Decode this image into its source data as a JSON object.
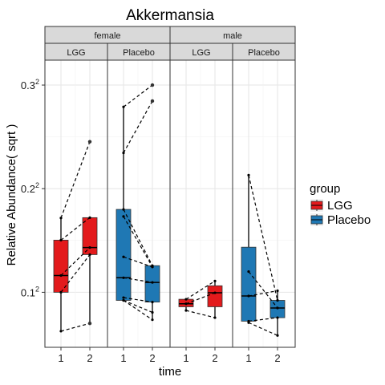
{
  "chart_data": {
    "type": "boxplot",
    "title": "Akkermansia",
    "xlabel": "time",
    "ylabel": "Relative Abundance( sqrt )",
    "y_scale": "sqrt",
    "ylim": [
      0.0022,
      0.105
    ],
    "y_ticks": [
      {
        "value": 0.01,
        "base": "0.1",
        "exp": "2"
      },
      {
        "value": 0.04,
        "base": "0.2",
        "exp": "2"
      },
      {
        "value": 0.09,
        "base": "0.3",
        "exp": "2"
      }
    ],
    "x_ticks": [
      "1",
      "2"
    ],
    "grid": true,
    "legend": {
      "title": "group",
      "position": "right",
      "items": [
        {
          "label": "LGG",
          "color": "#e31a1c"
        },
        {
          "label": "Placebo",
          "color": "#1f78b4"
        }
      ]
    },
    "facet_rows": [
      "female",
      "male"
    ],
    "facet_cols": [
      "LGG",
      "Placebo"
    ],
    "panels": [
      {
        "sex": "female",
        "group": "LGG",
        "color": "#e31a1c",
        "boxes": [
          {
            "time": "1",
            "min": 0.0039,
            "q1": 0.01,
            "median": 0.0135,
            "q3": 0.0226,
            "max": 0.0295
          },
          {
            "time": "2",
            "min": 0.0049,
            "q1": 0.0186,
            "median": 0.0205,
            "q3": 0.0296,
            "max": 0.0296
          }
        ],
        "outliers": [
          {
            "time": "2",
            "value": 0.0602
          },
          {
            "time": "2",
            "value": 0.0049
          }
        ],
        "pairs": [
          [
            0.0295,
            0.0602
          ],
          [
            0.0226,
            0.0296
          ],
          [
            0.0135,
            0.0205
          ],
          [
            0.01,
            0.0186
          ],
          [
            0.0039,
            0.0049
          ]
        ]
      },
      {
        "sex": "female",
        "group": "Placebo",
        "color": "#1f78b4",
        "boxes": [
          {
            "time": "1",
            "min": 0.0085,
            "q1": 0.0085,
            "median": 0.013,
            "q3": 0.0324,
            "max": 0.0778
          },
          {
            "time": "2",
            "min": 0.0054,
            "q1": 0.0082,
            "median": 0.012,
            "q3": 0.0158,
            "max": 0.0158
          }
        ],
        "outliers": [
          {
            "time": "2",
            "value": 0.09
          },
          {
            "time": "2",
            "value": 0.081
          }
        ],
        "pairs": [
          [
            0.0778,
            0.09
          ],
          [
            0.055,
            0.081
          ],
          [
            0.0324,
            0.0158
          ],
          [
            0.03,
            0.0155
          ],
          [
            0.018,
            0.0155
          ],
          [
            0.013,
            0.012
          ],
          [
            0.009,
            0.0082
          ],
          [
            0.0085,
            0.0065
          ],
          [
            0.0085,
            0.0054
          ]
        ]
      },
      {
        "sex": "male",
        "group": "LGG",
        "color": "#e31a1c",
        "boxes": [
          {
            "time": "1",
            "min": 0.0068,
            "q1": 0.0074,
            "median": 0.0079,
            "q3": 0.0087,
            "max": 0.0087
          },
          {
            "time": "2",
            "min": 0.0057,
            "q1": 0.0074,
            "median": 0.0099,
            "q3": 0.0113,
            "max": 0.0123
          }
        ],
        "outliers": [],
        "pairs": [
          [
            0.0087,
            0.0123
          ],
          [
            0.0079,
            0.0099
          ],
          [
            0.0068,
            0.0057
          ]
        ]
      },
      {
        "sex": "male",
        "group": "Placebo",
        "color": "#1f78b4",
        "boxes": [
          {
            "time": "1",
            "min": 0.005,
            "q1": 0.0052,
            "median": 0.0093,
            "q3": 0.0206,
            "max": 0.0454
          },
          {
            "time": "2",
            "min": 0.0034,
            "q1": 0.0057,
            "median": 0.0072,
            "q3": 0.0085,
            "max": 0.0103
          }
        ],
        "outliers": [],
        "pairs": [
          [
            0.0454,
            0.0085
          ],
          [
            0.0144,
            0.0072
          ],
          [
            0.0093,
            0.0103
          ],
          [
            0.0052,
            0.0057
          ],
          [
            0.005,
            0.0034
          ]
        ]
      }
    ]
  }
}
